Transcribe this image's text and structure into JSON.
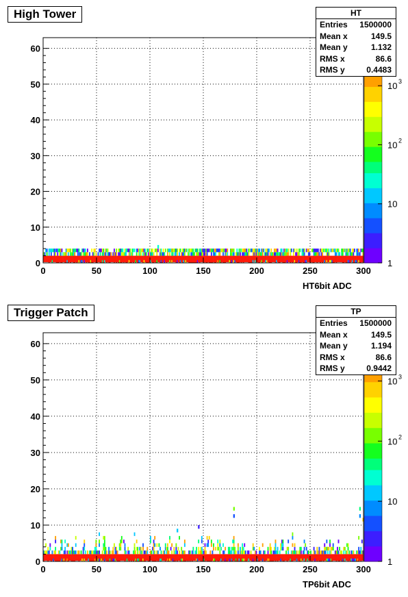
{
  "chart_data": [
    {
      "type": "heatmap",
      "title": "High Tower",
      "xlabel": "HT6bit ADC",
      "ylabel": "",
      "xlim": [
        0,
        300
      ],
      "ylim": [
        0,
        63
      ],
      "x_ticks": [
        0,
        50,
        100,
        150,
        200,
        250,
        300
      ],
      "y_ticks": [
        0,
        10,
        20,
        30,
        40,
        50,
        60
      ],
      "grid": true,
      "color_scale": "log",
      "z_ticks": [
        "1",
        "10",
        "10",
        "10"
      ],
      "z_tick_exponents": [
        "",
        "",
        "2",
        "3"
      ],
      "z_tick_values": [
        1,
        10,
        100,
        1000
      ],
      "z_range": [
        1,
        1500
      ],
      "stats": {
        "name": "HT",
        "rows": [
          {
            "label": "Entries",
            "value": "1500000"
          },
          {
            "label": "Mean x",
            "value": "149.5"
          },
          {
            "label": "Mean y",
            "value": "1.132"
          },
          {
            "label": "RMS x",
            "value": "86.6"
          },
          {
            "label": "RMS y",
            "value": "0.4483"
          }
        ]
      },
      "bins": [
        {
          "y": 0,
          "count": 800,
          "description": "row y=0"
        },
        {
          "y": 1,
          "count": 1500,
          "description": "dominant row y=1 across all x"
        },
        {
          "y": 2,
          "count": 40,
          "description": "sparse row y=2"
        },
        {
          "y": 3,
          "count": 3,
          "description": "rare entries y=3"
        }
      ],
      "max_y_observed": 4
    },
    {
      "type": "heatmap",
      "title": "Trigger Patch",
      "xlabel": "TP6bit ADC",
      "ylabel": "",
      "xlim": [
        0,
        300
      ],
      "ylim": [
        0,
        63
      ],
      "x_ticks": [
        0,
        50,
        100,
        150,
        200,
        250,
        300
      ],
      "y_ticks": [
        0,
        10,
        20,
        30,
        40,
        50,
        60
      ],
      "grid": true,
      "color_scale": "log",
      "z_ticks": [
        "1",
        "10",
        "10",
        "10"
      ],
      "z_tick_exponents": [
        "",
        "",
        "2",
        "3"
      ],
      "z_tick_values": [
        1,
        10,
        100,
        1000
      ],
      "z_range": [
        1,
        1500
      ],
      "stats": {
        "name": "TP",
        "rows": [
          {
            "label": "Entries",
            "value": "1500000"
          },
          {
            "label": "Mean x",
            "value": "149.5"
          },
          {
            "label": "Mean y",
            "value": "1.194"
          },
          {
            "label": "RMS x",
            "value": "86.6"
          },
          {
            "label": "RMS y",
            "value": "0.9442"
          }
        ]
      },
      "bins": [
        {
          "y": 0,
          "count": 800,
          "description": "row y=0"
        },
        {
          "y": 1,
          "count": 1500,
          "description": "dominant row y=1 across all x"
        },
        {
          "y": 2,
          "count": 100,
          "description": "row y=2"
        },
        {
          "y": 3,
          "count": 40,
          "description": "row y=3"
        },
        {
          "y": 5,
          "count": 10,
          "description": "tail up to y~6"
        },
        {
          "y": 14,
          "count": 1,
          "description": "isolated high entries near x=178 and x=296"
        }
      ],
      "max_y_observed": 15
    }
  ],
  "colors": {
    "dominant": "#ff1a0a",
    "palette": [
      "#6e00ff",
      "#3c1eff",
      "#1450ff",
      "#008cff",
      "#00c8ff",
      "#00ffd2",
      "#00ff7a",
      "#14ff1e",
      "#78ff00",
      "#c8ff00",
      "#ffff00",
      "#ffd200",
      "#ffa000"
    ]
  }
}
